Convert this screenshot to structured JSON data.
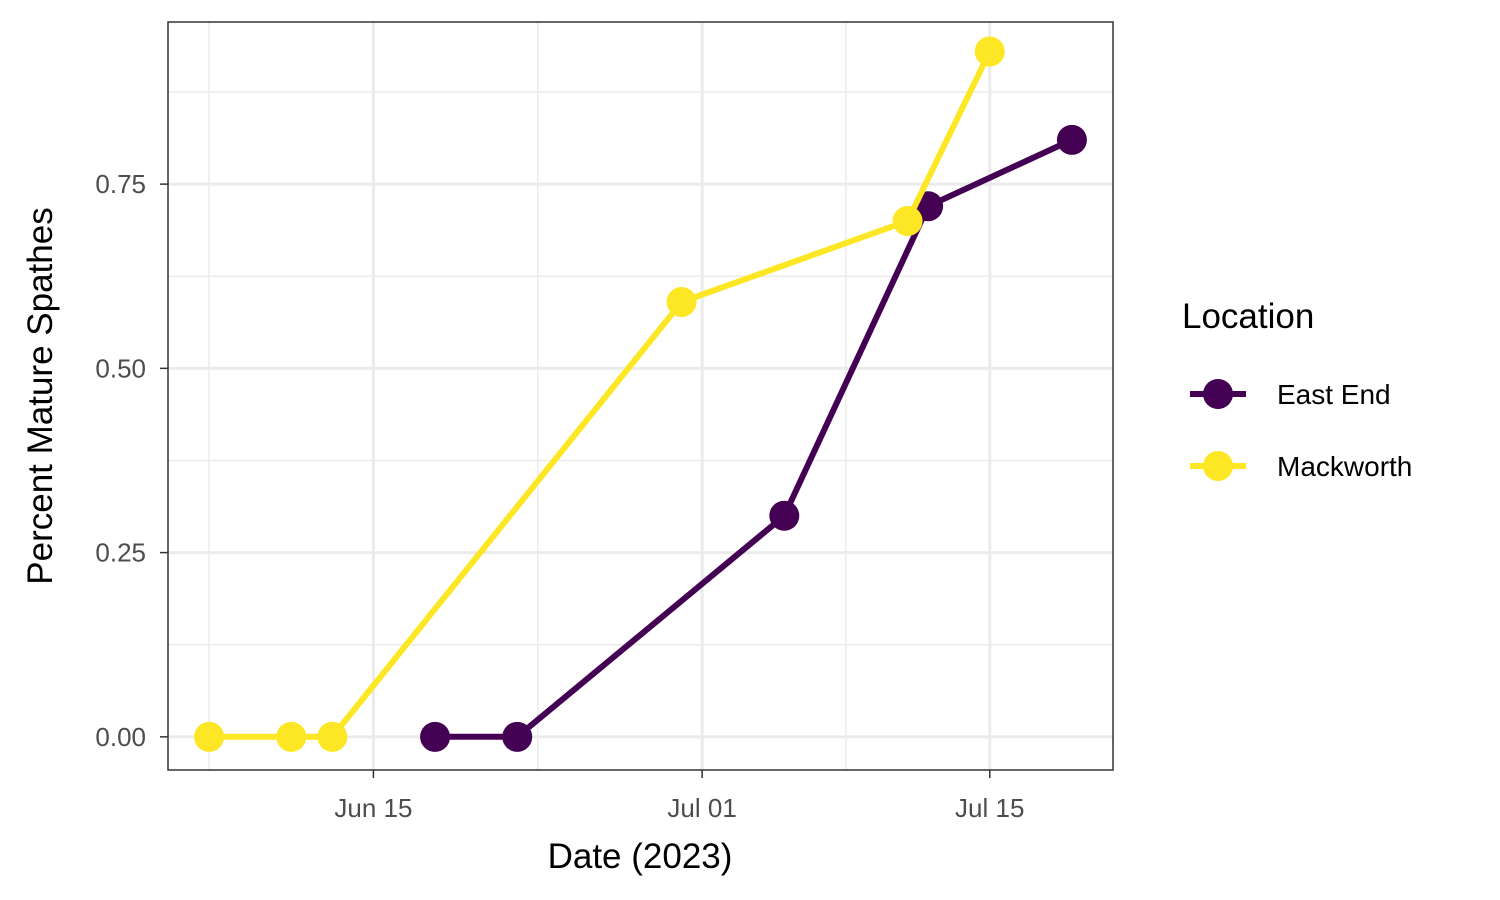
{
  "chart_data": {
    "type": "line",
    "xlabel": "Date (2023)",
    "ylabel": "Percent Mature Spathes",
    "xlim": [
      "2023-06-05",
      "2023-07-21"
    ],
    "ylim": [
      -0.045,
      0.97
    ],
    "x_minor_ticks": [
      "2023-06-07",
      "2023-06-23",
      "2023-07-08"
    ],
    "y_minor_ticks": [
      0.125,
      0.375,
      0.625,
      0.875
    ],
    "x_ticks": [
      {
        "date": "2023-06-15",
        "label": "Jun 15"
      },
      {
        "date": "2023-07-01",
        "label": "Jul 01"
      },
      {
        "date": "2023-07-15",
        "label": "Jul 15"
      }
    ],
    "y_ticks": [
      {
        "value": 0.0,
        "label": "0.00"
      },
      {
        "value": 0.25,
        "label": "0.25"
      },
      {
        "value": 0.5,
        "label": "0.50"
      },
      {
        "value": 0.75,
        "label": "0.75"
      }
    ],
    "grid": true,
    "legend": {
      "title": "Location",
      "position": "right"
    },
    "series": [
      {
        "name": "East End",
        "color": "#440154",
        "points": [
          {
            "x": "2023-06-18",
            "y": 0.0
          },
          {
            "x": "2023-06-22",
            "y": 0.0
          },
          {
            "x": "2023-07-05",
            "y": 0.3
          },
          {
            "x": "2023-07-12",
            "y": 0.72
          },
          {
            "x": "2023-07-19",
            "y": 0.81
          }
        ]
      },
      {
        "name": "Mackworth",
        "color": "#FDE725",
        "points": [
          {
            "x": "2023-06-07",
            "y": 0.0
          },
          {
            "x": "2023-06-11",
            "y": 0.0
          },
          {
            "x": "2023-06-13",
            "y": 0.0
          },
          {
            "x": "2023-06-30",
            "y": 0.59
          },
          {
            "x": "2023-07-11",
            "y": 0.7
          },
          {
            "x": "2023-07-15",
            "y": 0.93
          }
        ]
      }
    ]
  }
}
